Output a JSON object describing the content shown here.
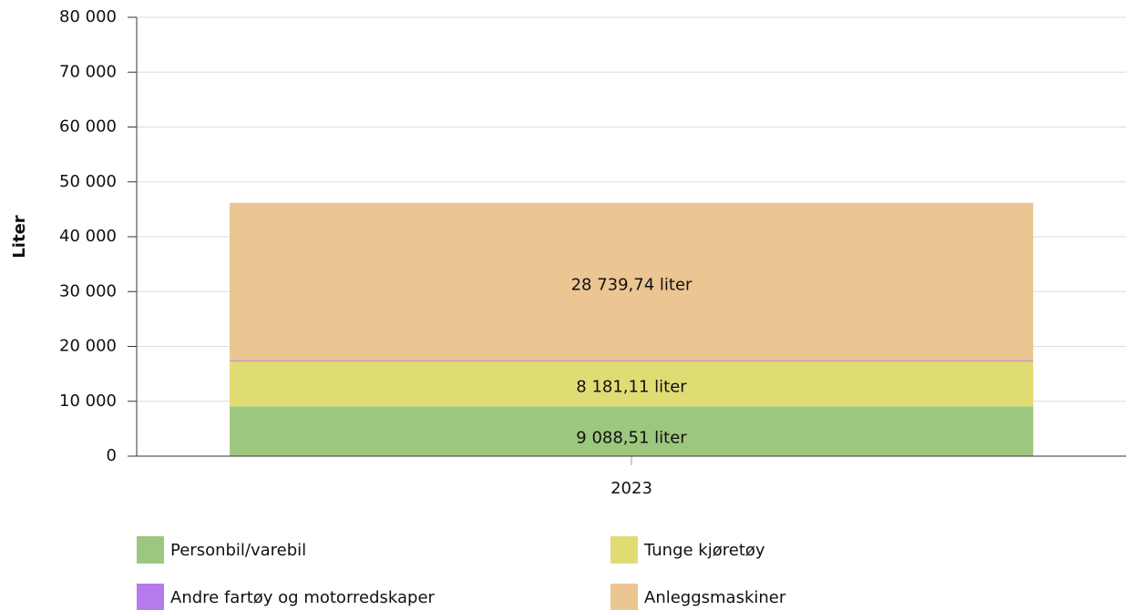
{
  "chart_data": {
    "type": "stacked-bar",
    "y_label": "Liter",
    "categories": [
      "2023"
    ],
    "series": [
      {
        "name": "Personbil/varebil",
        "color": "#9dc77f",
        "values": [
          9088.51
        ],
        "value_labels": [
          "9 088,51 liter"
        ]
      },
      {
        "name": "Tunge kjøretøy",
        "color": "#e0dc74",
        "values": [
          8181.11
        ],
        "value_labels": [
          "8 181,11 liter"
        ]
      },
      {
        "name": "Andre fartøy og motorredskaper",
        "color": "#b57bed",
        "values": [
          150
        ]
      },
      {
        "name": "Anleggsmaskiner",
        "color": "#ebc592",
        "values": [
          28739.74
        ],
        "value_labels": [
          "28 739,74 liter"
        ]
      }
    ],
    "ylim": [
      0,
      80000
    ],
    "yticks": [
      0,
      {
        "value": 10000,
        "label": "10 000"
      },
      {
        "value": 20000,
        "label": "20 000"
      },
      {
        "value": 30000,
        "label": "30 000"
      },
      {
        "value": 40000,
        "label": "40 000"
      },
      {
        "value": 50000,
        "label": "50 000"
      },
      {
        "value": 60000,
        "label": "60 000"
      },
      {
        "value": 70000,
        "label": "70 000"
      },
      {
        "value": 80000,
        "label": "80 000"
      }
    ],
    "grid": true,
    "legend": "bottom"
  }
}
